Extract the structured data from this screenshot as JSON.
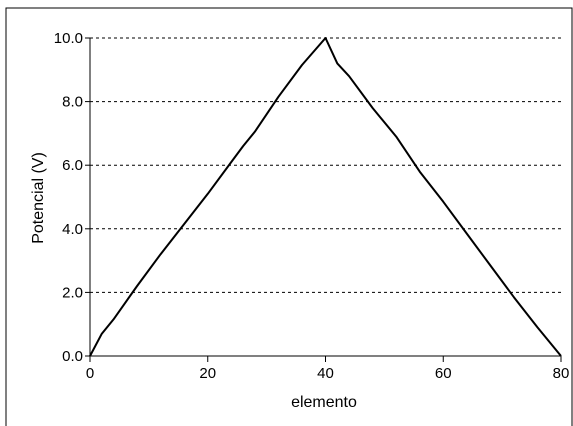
{
  "chart_data": {
    "type": "line",
    "title": "",
    "xlabel": "elemento",
    "ylabel": "Potencial (V)",
    "xlim": [
      0,
      80
    ],
    "ylim": [
      0,
      10
    ],
    "x_ticks": [
      0,
      20,
      40,
      60,
      80
    ],
    "x_tick_labels": [
      "0",
      "20",
      "40",
      "60",
      "80"
    ],
    "y_ticks": [
      0,
      2,
      4,
      6,
      8,
      10
    ],
    "y_tick_labels": [
      "0.0",
      "2.0",
      "4.0",
      "6.0",
      "8.0",
      "10.0"
    ],
    "grid": "horizontal dashed",
    "legend": "none",
    "series": [
      {
        "color": "#000000",
        "x": [
          0,
          2,
          4,
          8,
          12,
          16,
          20,
          24,
          26,
          28,
          30,
          32,
          36,
          40,
          42,
          44,
          48,
          52,
          56,
          60,
          64,
          68,
          72,
          76,
          80
        ],
        "y": [
          0,
          0.7,
          1.15,
          2.2,
          3.2,
          4.15,
          5.1,
          6.1,
          6.6,
          7.05,
          7.6,
          8.15,
          9.15,
          10.0,
          9.2,
          8.8,
          7.8,
          6.9,
          5.8,
          4.85,
          3.85,
          2.85,
          1.85,
          0.9,
          0
        ]
      }
    ]
  }
}
